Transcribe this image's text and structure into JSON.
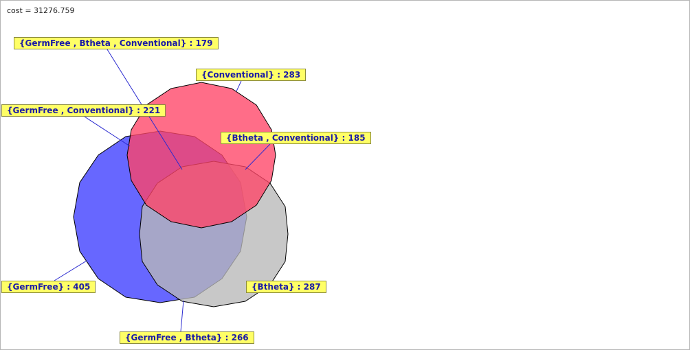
{
  "cost_text": "cost = 31276.759",
  "colors": {
    "germfree": "#5a5aff",
    "btheta": "#b9b9b9",
    "conventional": "#ff5577",
    "label_bg": "#ffff66",
    "label_text": "#1a1aa6",
    "leader_line": "#2a2ad0"
  },
  "sets": [
    {
      "id": "germfree",
      "name": "GermFree"
    },
    {
      "id": "btheta",
      "name": "Btheta"
    },
    {
      "id": "conventional",
      "name": "Conventional"
    }
  ],
  "labels": {
    "germfree_btheta_conventional": "{GermFree , Btheta , Conventional} : 179",
    "conventional": "{Conventional} : 283",
    "germfree_conventional": "{GermFree , Conventional} : 221",
    "btheta_conventional": "{Btheta , Conventional} : 185",
    "germfree": "{GermFree} : 405",
    "btheta": "{Btheta} : 287",
    "germfree_btheta": "{GermFree , Btheta} : 266"
  },
  "region_counts": {
    "germfree": 405,
    "btheta": 287,
    "conventional": 283,
    "germfree_btheta": 266,
    "germfree_conventional": 221,
    "btheta_conventional": 185,
    "germfree_btheta_conventional": 179
  }
}
